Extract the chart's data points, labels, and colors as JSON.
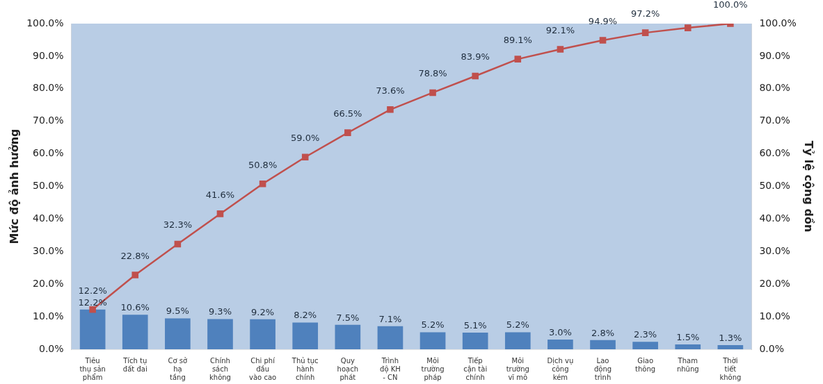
{
  "chart_data": {
    "type": "bar",
    "ylabel": "Mức độ ảnh hưởng",
    "y2label": "Tỷ lệ cộng dồn",
    "categories": [
      "Tiêu\nthụ sản\nphẩm",
      "Tích tụ\nđất đai",
      "Cơ sở\nhạ\ntầng",
      "Chính\nsách\nkhông",
      "Chi phí\nđầu\nvào cao",
      "Thủ tục\nhành\nchính",
      "Quy\nhoạch\nphát",
      "Trình\nđộ KH\n- CN",
      "Môi\ntrường\npháp",
      "Tiếp\ncận tài\nchính",
      "Môi\ntrường\nvĩ mô",
      "Dịch vụ\ncông\nkém",
      "Lao\nđộng\ntrình",
      "Giao\nthông",
      "Tham\nnhũng",
      "Thời\ntiết\nkhông"
    ],
    "series": [
      {
        "color": "#4f81bd",
        "values": [
          12.2,
          10.6,
          9.5,
          9.3,
          9.2,
          8.2,
          7.5,
          7.1,
          5.2,
          5.1,
          5.2,
          3.0,
          2.8,
          2.3,
          1.5,
          1.3
        ],
        "value_labels": [
          "12.2%",
          "10.6%",
          "9.5%",
          "9.3%",
          "9.2%",
          "8.2%",
          "7.5%",
          "7.1%",
          "5.2%",
          "5.1%",
          "5.2%",
          "3.0%",
          "2.8%",
          "2.3%",
          "1.5%",
          "1.3%"
        ]
      },
      {
        "type": "line",
        "color": "#c0504d",
        "axis": "y2",
        "marker": "square",
        "values": [
          12.2,
          22.8,
          32.3,
          41.6,
          50.8,
          59.0,
          66.5,
          73.6,
          78.8,
          83.9,
          89.1,
          92.1,
          94.9,
          97.2,
          98.7,
          100.0
        ],
        "value_labels": [
          "12.2%",
          "22.8%",
          "32.3%",
          "41.6%",
          "50.8%",
          "59.0%",
          "66.5%",
          "73.6%",
          "78.8%",
          "83.9%",
          "89.1%",
          "92.1%",
          "94.9%",
          "97.2%",
          null,
          "100.0%"
        ]
      }
    ],
    "ylim": [
      0,
      100
    ],
    "yticks": [
      {
        "value": 0,
        "label": "0.0%"
      },
      {
        "value": 10,
        "label": "10.0%"
      },
      {
        "value": 20,
        "label": "20.0%"
      },
      {
        "value": 30,
        "label": "30.0%"
      },
      {
        "value": 40,
        "label": "40.0%"
      },
      {
        "value": 50,
        "label": "50.0%"
      },
      {
        "value": 60,
        "label": "60.0%"
      },
      {
        "value": 70,
        "label": "70.0%"
      },
      {
        "value": 80,
        "label": "80.0%"
      },
      {
        "value": 90,
        "label": "90.0%"
      },
      {
        "value": 100,
        "label": "100.0%"
      }
    ],
    "y2lim": [
      0,
      100
    ],
    "y2ticks": [
      {
        "value": 0,
        "label": "0.0%"
      },
      {
        "value": 10,
        "label": "10.0%"
      },
      {
        "value": 20,
        "label": "20.0%"
      },
      {
        "value": 30,
        "label": "30.0%"
      },
      {
        "value": 40,
        "label": "40.0%"
      },
      {
        "value": 50,
        "label": "50.0%"
      },
      {
        "value": 60,
        "label": "60.0%"
      },
      {
        "value": 70,
        "label": "70.0%"
      },
      {
        "value": 80,
        "label": "80.0%"
      },
      {
        "value": 90,
        "label": "90.0%"
      },
      {
        "value": 100,
        "label": "100.0%"
      }
    ],
    "grid": false,
    "legend": false
  }
}
